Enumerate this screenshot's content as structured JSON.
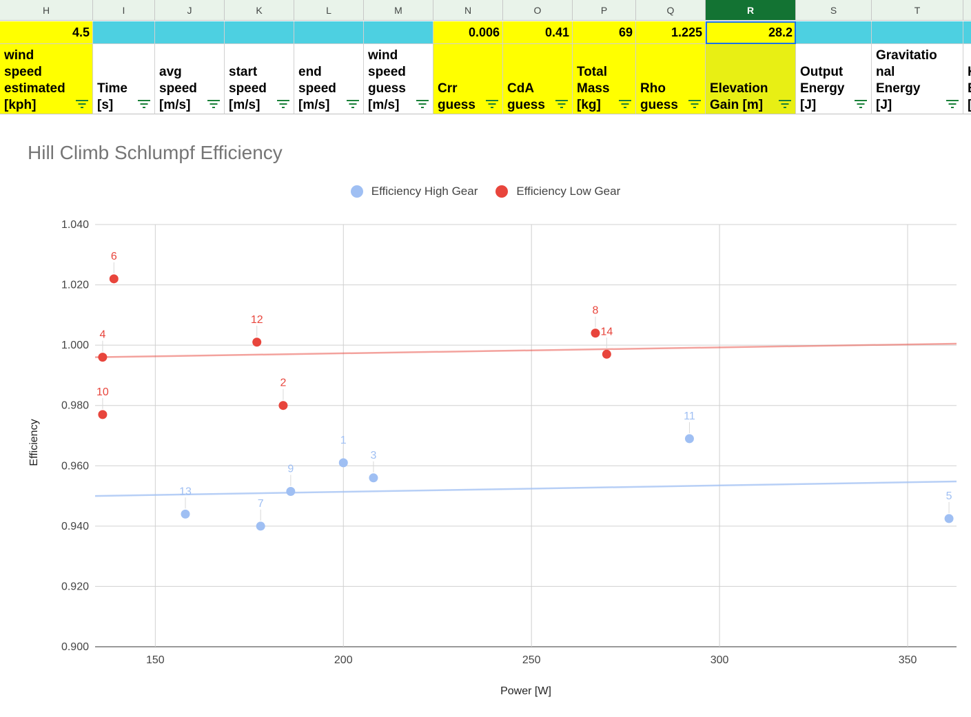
{
  "sheet": {
    "columns": [
      {
        "letter": "H",
        "width": 135,
        "value": "4.5",
        "fill": "yel",
        "header": "wind\nspeed\nestimated\n[kph]",
        "hfill": "yel"
      },
      {
        "letter": "I",
        "width": 90,
        "value": "",
        "fill": "cyan",
        "header": "Time\n[s]",
        "hfill": "white"
      },
      {
        "letter": "J",
        "width": 101,
        "value": "",
        "fill": "cyan",
        "header": "avg\nspeed\n[m/s]",
        "hfill": "white"
      },
      {
        "letter": "K",
        "width": 101,
        "value": "",
        "fill": "cyan",
        "header": "start\nspeed\n[m/s]",
        "hfill": "white"
      },
      {
        "letter": "L",
        "width": 101,
        "value": "",
        "fill": "cyan",
        "header": "end\nspeed\n[m/s]",
        "hfill": "white"
      },
      {
        "letter": "M",
        "width": 101,
        "value": "",
        "fill": "cyan",
        "header": "wind\nspeed\nguess\n[m/s]",
        "hfill": "white"
      },
      {
        "letter": "N",
        "width": 101,
        "value": "0.006",
        "fill": "yel",
        "header": "Crr\nguess",
        "hfill": "yel"
      },
      {
        "letter": "O",
        "width": 101,
        "value": "0.41",
        "fill": "yel",
        "header": "CdA\nguess",
        "hfill": "yel"
      },
      {
        "letter": "P",
        "width": 92,
        "value": "69",
        "fill": "yel",
        "header": "Total\nMass\n[kg]",
        "hfill": "yel"
      },
      {
        "letter": "Q",
        "width": 101,
        "value": "1.225",
        "fill": "yel",
        "header": "Rho\nguess",
        "hfill": "yel"
      },
      {
        "letter": "R",
        "width": 131,
        "value": "28.2",
        "fill": "sel",
        "header": "Elevation\nGain [m]",
        "hfill": "yel2",
        "active": true
      },
      {
        "letter": "S",
        "width": 110,
        "value": "",
        "fill": "cyan",
        "header": "Output\nEnergy\n[J]",
        "hfill": "white"
      },
      {
        "letter": "T",
        "width": 133,
        "value": "",
        "fill": "cyan",
        "header": "Gravitatio\nnal\nEnergy\n[J]",
        "hfill": "white"
      },
      {
        "letter": "",
        "width": 20,
        "value": "",
        "fill": "cyan",
        "header": "K\nE\n[",
        "hfill": "white"
      }
    ]
  },
  "chart_data": {
    "type": "scatter",
    "title": "Hill Climb Schlumpf Efficiency",
    "xlabel": "Power [W]",
    "ylabel": "Efficiency",
    "xlim": [
      134,
      363
    ],
    "ylim": [
      0.9,
      1.04
    ],
    "xticks": [
      150,
      200,
      250,
      300,
      350
    ],
    "yticks": [
      "0.900",
      "0.920",
      "0.940",
      "0.960",
      "0.980",
      "1.000",
      "1.020",
      "1.040"
    ],
    "grid": true,
    "legend_position": "top",
    "series": [
      {
        "name": "Efficiency High Gear",
        "color": "#9fbff3",
        "points": [
          {
            "label": "1",
            "x": 200,
            "y": 0.961
          },
          {
            "label": "3",
            "x": 208,
            "y": 0.956
          },
          {
            "label": "5",
            "x": 361,
            "y": 0.9425
          },
          {
            "label": "7",
            "x": 178,
            "y": 0.94
          },
          {
            "label": "9",
            "x": 186,
            "y": 0.9515
          },
          {
            "label": "11",
            "x": 292,
            "y": 0.969
          },
          {
            "label": "13",
            "x": 158,
            "y": 0.944
          }
        ],
        "trendline": {
          "x": [
            134,
            363
          ],
          "y": [
            0.95,
            0.9548
          ]
        }
      },
      {
        "name": "Efficiency Low Gear",
        "color": "#e8453c",
        "points": [
          {
            "label": "2",
            "x": 184,
            "y": 0.98
          },
          {
            "label": "4",
            "x": 136,
            "y": 0.996
          },
          {
            "label": "6",
            "x": 139,
            "y": 1.022
          },
          {
            "label": "8",
            "x": 267,
            "y": 1.004
          },
          {
            "label": "10",
            "x": 136,
            "y": 0.977
          },
          {
            "label": "12",
            "x": 177,
            "y": 1.001
          },
          {
            "label": "14",
            "x": 270,
            "y": 0.997
          }
        ],
        "trendline": {
          "x": [
            134,
            363
          ],
          "y": [
            0.996,
            1.0005
          ]
        }
      }
    ]
  }
}
